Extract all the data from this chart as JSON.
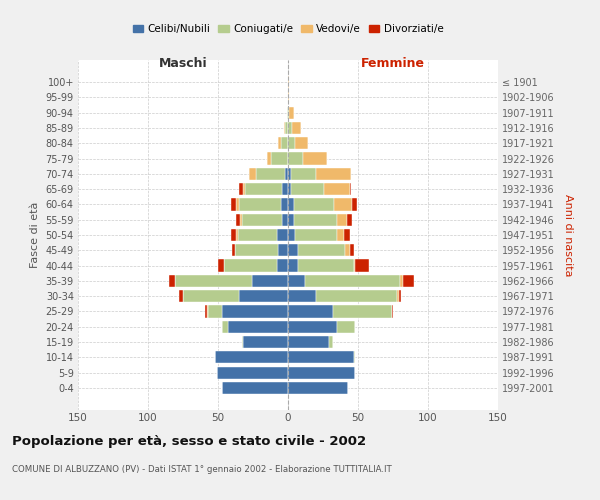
{
  "age_groups": [
    "100+",
    "95-99",
    "90-94",
    "85-89",
    "80-84",
    "75-79",
    "70-74",
    "65-69",
    "60-64",
    "55-59",
    "50-54",
    "45-49",
    "40-44",
    "35-39",
    "30-34",
    "25-29",
    "20-24",
    "15-19",
    "10-14",
    "5-9",
    "0-4"
  ],
  "birth_years": [
    "≤ 1901",
    "1902-1906",
    "1907-1911",
    "1912-1916",
    "1917-1921",
    "1922-1926",
    "1927-1931",
    "1932-1936",
    "1937-1941",
    "1942-1946",
    "1947-1951",
    "1952-1956",
    "1957-1961",
    "1962-1966",
    "1967-1971",
    "1972-1976",
    "1977-1981",
    "1982-1986",
    "1987-1991",
    "1992-1996",
    "1997-2001"
  ],
  "males": {
    "celibi": [
      0,
      0,
      0,
      0,
      0,
      0,
      2,
      4,
      5,
      4,
      8,
      7,
      8,
      26,
      35,
      47,
      43,
      32,
      52,
      51,
      47
    ],
    "coniugati": [
      0,
      0,
      1,
      2,
      5,
      12,
      21,
      27,
      30,
      29,
      28,
      31,
      38,
      55,
      40,
      10,
      4,
      1,
      0,
      0,
      0
    ],
    "vedovi": [
      0,
      0,
      0,
      1,
      2,
      3,
      5,
      1,
      2,
      1,
      1,
      0,
      0,
      0,
      0,
      1,
      0,
      0,
      0,
      0,
      0
    ],
    "divorziati": [
      0,
      0,
      0,
      0,
      0,
      0,
      0,
      3,
      4,
      3,
      4,
      2,
      4,
      4,
      3,
      1,
      0,
      0,
      0,
      0,
      0
    ]
  },
  "females": {
    "nubili": [
      0,
      0,
      0,
      0,
      0,
      0,
      2,
      2,
      4,
      4,
      5,
      7,
      7,
      12,
      20,
      32,
      35,
      29,
      47,
      48,
      43
    ],
    "coniugate": [
      0,
      0,
      1,
      3,
      5,
      11,
      18,
      24,
      29,
      31,
      30,
      34,
      40,
      68,
      58,
      42,
      13,
      3,
      1,
      0,
      0
    ],
    "vedove": [
      1,
      1,
      3,
      6,
      9,
      17,
      25,
      18,
      13,
      7,
      5,
      3,
      1,
      2,
      1,
      0,
      0,
      0,
      0,
      0,
      0
    ],
    "divorziate": [
      0,
      0,
      0,
      0,
      0,
      0,
      0,
      1,
      3,
      4,
      4,
      3,
      10,
      8,
      2,
      1,
      0,
      0,
      0,
      0,
      0
    ]
  },
  "colors": {
    "celibi": "#4472a8",
    "coniugati": "#b5cc8e",
    "vedovi": "#f0b96a",
    "divorziati": "#cc2200"
  },
  "xlim": 150,
  "title": "Popolazione per età, sesso e stato civile - 2002",
  "subtitle": "COMUNE DI ALBUZZANO (PV) - Dati ISTAT 1° gennaio 2002 - Elaborazione TUTTITALIA.IT",
  "ylabel_left": "Fasce di età",
  "ylabel_right": "Anni di nascita",
  "xlabel_left": "Maschi",
  "xlabel_right": "Femmine",
  "legend_labels": [
    "Celibi/Nubili",
    "Coniugati/e",
    "Vedovi/e",
    "Divorziati/e"
  ],
  "bg_color": "#f0f0f0",
  "plot_bg_color": "#ffffff"
}
